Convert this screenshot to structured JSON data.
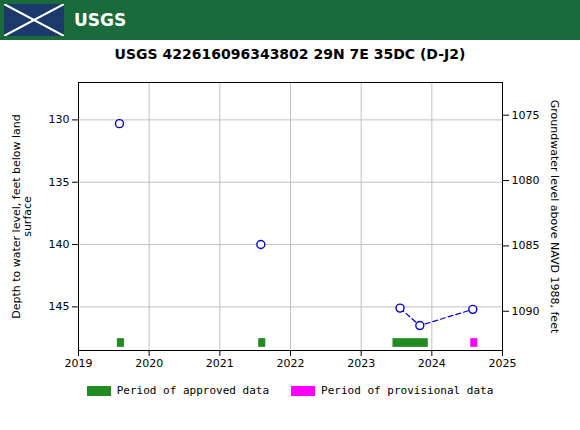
{
  "chart_data": {
    "type": "scatter",
    "title": "USGS 422616096343802 29N 7E 35DC (D-J2)",
    "annotations": [
      "USGS"
    ],
    "ylabel": "Depth to water level, feet below land\nsurface",
    "y2label": "Groundwater level above NAVD 1988, feet",
    "xlim": [
      2019.0,
      2025.0
    ],
    "xticks": [
      2019,
      2020,
      2021,
      2022,
      2023,
      2024,
      2025
    ],
    "ylim": [
      148.5,
      127.0
    ],
    "yticks": [
      130,
      135,
      140,
      145
    ],
    "y2lim": [
      1093.0,
      1072.5
    ],
    "y2ticks": [
      1075,
      1080,
      1085,
      1090
    ],
    "grid": true,
    "legend": "bottom",
    "x": [
      2019.58,
      2021.58,
      2023.55,
      2023.83,
      2024.58
    ],
    "series": [
      {
        "type": "line",
        "line_style": "dashed",
        "color": "#0000CC",
        "values": [
          null,
          null,
          145.1,
          146.5,
          145.2
        ]
      },
      {
        "type": "scatter",
        "marker": "circle",
        "color": "#0000CC",
        "values": [
          130.3,
          140.0,
          145.1,
          146.5,
          145.2
        ]
      },
      {
        "type": "bar",
        "name": "Period of approved data",
        "color": "#228B22",
        "values": [
          {
            "x_start": 2019.55,
            "x_end": 2019.65,
            "y_start": 147.55,
            "y_end": 148.25
          },
          {
            "x_start": 2021.55,
            "x_end": 2021.65,
            "y_start": 147.55,
            "y_end": 148.25
          },
          {
            "x_start": 2023.45,
            "x_end": 2023.95,
            "y_start": 147.55,
            "y_end": 148.25
          }
        ]
      },
      {
        "type": "bar",
        "name": "Period of provisional data",
        "color": "#FF00FF",
        "values": [
          {
            "x_start": 2024.55,
            "x_end": 2024.65,
            "y_start": 147.55,
            "y_end": 148.25
          }
        ]
      }
    ]
  }
}
